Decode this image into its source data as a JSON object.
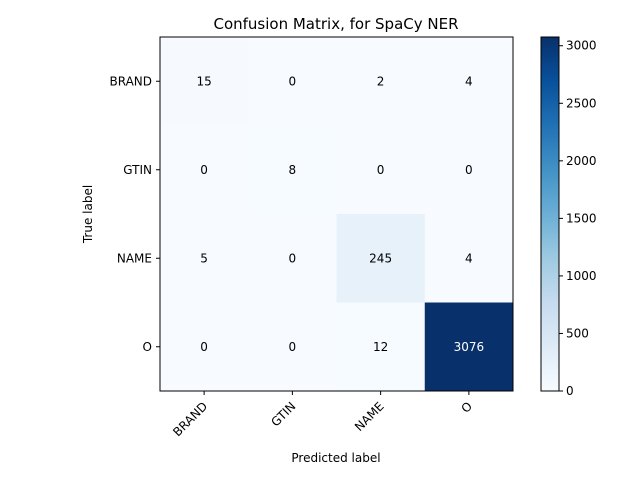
{
  "chart_data": {
    "type": "heatmap",
    "title": "Confusion Matrix, for SpaCy NER",
    "xlabel": "Predicted label",
    "ylabel": "True label",
    "x_categories": [
      "BRAND",
      "GTIN",
      "NAME",
      "O"
    ],
    "y_categories": [
      "BRAND",
      "GTIN",
      "NAME",
      "O"
    ],
    "values": [
      [
        15,
        0,
        2,
        4
      ],
      [
        0,
        8,
        0,
        0
      ],
      [
        5,
        0,
        245,
        4
      ],
      [
        0,
        0,
        12,
        3076
      ]
    ],
    "colormap": "Blues",
    "colorbar": {
      "vmin": 0,
      "vmax": 3076,
      "ticks": [
        0,
        500,
        1000,
        1500,
        2000,
        2500,
        3000
      ],
      "tick_labels": [
        "0",
        "500",
        "1000",
        "1500",
        "2000",
        "2500",
        "3000"
      ]
    }
  }
}
